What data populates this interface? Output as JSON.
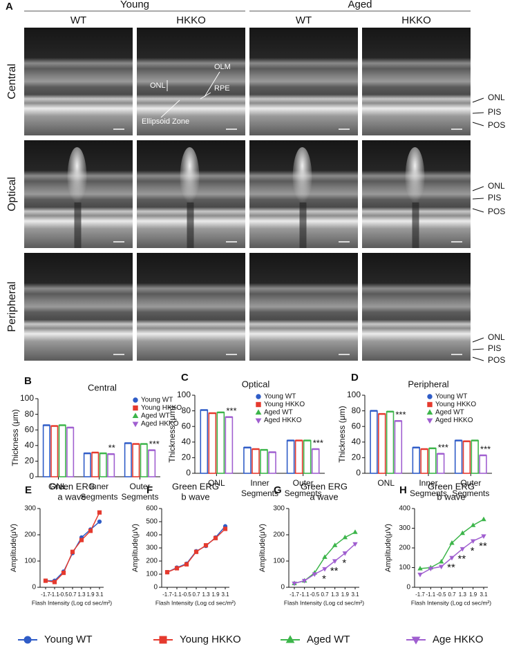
{
  "figure": {
    "panel": "A",
    "groups": [
      "Young",
      "Aged"
    ],
    "columns": [
      "WT",
      "HKKO",
      "WT",
      "HKKO"
    ],
    "rows": [
      "Central",
      "Optical",
      "Peripheral"
    ],
    "layers": [
      "ONL",
      "PIS",
      "POS"
    ],
    "annotations": [
      "OLM",
      "ONL",
      "RPE",
      "Ellipsoid Zone"
    ]
  },
  "chart_data": [
    {
      "type": "bar",
      "panel": "B",
      "title": "Central",
      "ylabel": "Thickness (μm)",
      "categories": [
        "ONL",
        "Inner Segments",
        "Outer Segments"
      ],
      "series": [
        {
          "name": "Young WT",
          "color": "#2f5cc7",
          "marker": "circle",
          "values": [
            66,
            30,
            43
          ]
        },
        {
          "name": "Young HKKO",
          "color": "#e53a2e",
          "marker": "square",
          "values": [
            65,
            31,
            42
          ]
        },
        {
          "name": "Aged WT",
          "color": "#3cb54a",
          "marker": "triangle-up",
          "values": [
            66,
            30,
            42
          ]
        },
        {
          "name": "Aged HKKO",
          "color": "#a05fd0",
          "marker": "triangle-down",
          "values": [
            63,
            29,
            34
          ]
        }
      ],
      "ylim": [
        0,
        100
      ],
      "yticks": [
        0,
        20,
        40,
        60,
        80,
        100
      ],
      "annotations": [
        {
          "text": "**",
          "category": "Inner Segments",
          "series": "Aged HKKO"
        },
        {
          "text": "***",
          "category": "Outer Segments",
          "series": "Aged HKKO"
        }
      ]
    },
    {
      "type": "bar",
      "panel": "C",
      "title": "Optical",
      "ylabel": "Thickness (μm)",
      "categories": [
        "ONL",
        "Inner Segments",
        "Outer Segments"
      ],
      "series": [
        {
          "name": "Young WT",
          "color": "#2f5cc7",
          "marker": "circle",
          "values": [
            81,
            33,
            42
          ]
        },
        {
          "name": "Young HKKO",
          "color": "#e53a2e",
          "marker": "square",
          "values": [
            77,
            31,
            42
          ]
        },
        {
          "name": "Aged WT",
          "color": "#3cb54a",
          "marker": "triangle-up",
          "values": [
            78,
            30,
            42
          ]
        },
        {
          "name": "Aged HKKO",
          "color": "#a05fd0",
          "marker": "triangle-down",
          "values": [
            72,
            27,
            31
          ]
        }
      ],
      "ylim": [
        0,
        100
      ],
      "yticks": [
        0,
        20,
        40,
        60,
        80,
        100
      ],
      "annotations": [
        {
          "text": "***",
          "category": "ONL",
          "series": "Aged HKKO"
        },
        {
          "text": "***",
          "category": "Outer Segments",
          "series": "Aged HKKO"
        }
      ]
    },
    {
      "type": "bar",
      "panel": "D",
      "title": "Peripheral",
      "ylabel": "Thickness (μm)",
      "categories": [
        "ONL",
        "Inner Segments",
        "Outer Segments"
      ],
      "series": [
        {
          "name": "Young WT",
          "color": "#2f5cc7",
          "marker": "circle",
          "values": [
            80,
            33,
            42
          ]
        },
        {
          "name": "Young HKKO",
          "color": "#e53a2e",
          "marker": "square",
          "values": [
            76,
            31,
            41
          ]
        },
        {
          "name": "Aged WT",
          "color": "#3cb54a",
          "marker": "triangle-up",
          "values": [
            79,
            32,
            42
          ]
        },
        {
          "name": "Aged HKKO",
          "color": "#a05fd0",
          "marker": "triangle-down",
          "values": [
            67,
            25,
            23
          ]
        }
      ],
      "ylim": [
        0,
        100
      ],
      "yticks": [
        0,
        20,
        40,
        60,
        80,
        100
      ],
      "annotations": [
        {
          "text": "***",
          "category": "ONL",
          "series": "Aged HKKO"
        },
        {
          "text": "***",
          "category": "Inner Segments",
          "series": "Aged HKKO"
        },
        {
          "text": "***",
          "category": "Outer Segments",
          "series": "Aged HKKO"
        }
      ]
    },
    {
      "type": "line",
      "panel": "E",
      "title": "Green ERG",
      "subtitle": "a wave",
      "xlabel": "Flash Intensity (Log cd sec/m²)",
      "ylabel": "Amplitude(μV)",
      "categories": [
        "-1.7",
        "-1.1",
        "-0.5",
        "0.7",
        "1.3",
        "1.9",
        "3.1"
      ],
      "series": [
        {
          "name": "Young WT",
          "color": "#2f5cc7",
          "marker": "circle",
          "values": [
            25,
            25,
            60,
            130,
            190,
            220,
            250
          ]
        },
        {
          "name": "Young HKKO",
          "color": "#e53a2e",
          "marker": "square",
          "values": [
            25,
            20,
            55,
            135,
            180,
            215,
            285
          ]
        }
      ],
      "ylim": [
        0,
        300
      ],
      "yticks": [
        0,
        100,
        200,
        300
      ]
    },
    {
      "type": "line",
      "panel": "F",
      "title": "Green ERG",
      "subtitle": "b wave",
      "xlabel": "Flash Intensity (Log cd sec/m²)",
      "ylabel": "Amplitude(μV)",
      "categories": [
        "-1.7",
        "-1.1",
        "-0.5",
        "0.7",
        "1.3",
        "1.9",
        "3.1"
      ],
      "series": [
        {
          "name": "Young WT",
          "color": "#2f5cc7",
          "marker": "circle",
          "values": [
            115,
            150,
            180,
            275,
            315,
            380,
            465
          ]
        },
        {
          "name": "Young HKKO",
          "color": "#e53a2e",
          "marker": "square",
          "values": [
            115,
            145,
            175,
            270,
            320,
            375,
            445
          ]
        }
      ],
      "ylim": [
        0,
        600
      ],
      "yticks": [
        0,
        100,
        200,
        300,
        400,
        500,
        600
      ]
    },
    {
      "type": "line",
      "panel": "G",
      "title": "Green ERG",
      "subtitle": "a wave",
      "xlabel": "Flash Intensity (Log cd sec/m²)",
      "ylabel": "Amplitude(μV)",
      "categories": [
        "-1.7",
        "-1.1",
        "-0.5",
        "0.7",
        "1.3",
        "1.9",
        "3.1"
      ],
      "series": [
        {
          "name": "Aged WT",
          "color": "#3cb54a",
          "marker": "triangle-up",
          "values": [
            15,
            25,
            55,
            115,
            160,
            190,
            210
          ]
        },
        {
          "name": "Age HKKO",
          "color": "#a05fd0",
          "marker": "triangle-down",
          "values": [
            15,
            25,
            50,
            70,
            100,
            130,
            165
          ]
        }
      ],
      "ylim": [
        0,
        300
      ],
      "yticks": [
        0,
        100,
        200,
        300
      ],
      "annotations": [
        {
          "text": "*",
          "category": "0.7",
          "series": "Age HKKO"
        },
        {
          "text": "**",
          "category": "1.3",
          "series": "Age HKKO"
        },
        {
          "text": "*",
          "category": "1.9",
          "series": "Age HKKO"
        }
      ]
    },
    {
      "type": "line",
      "panel": "H",
      "title": "Green ERG",
      "subtitle": "b wave",
      "xlabel": "Flash Intensity (Log cd sec/m²)",
      "ylabel": "Amplitude(μV)",
      "categories": [
        "-1.7",
        "-1.1",
        "-0.5",
        "0.7",
        "1.3",
        "1.9",
        "3.1"
      ],
      "series": [
        {
          "name": "Aged WT",
          "color": "#3cb54a",
          "marker": "triangle-up",
          "values": [
            95,
            100,
            130,
            225,
            275,
            315,
            345
          ]
        },
        {
          "name": "Age HKKO",
          "color": "#a05fd0",
          "marker": "triangle-down",
          "values": [
            65,
            95,
            105,
            150,
            195,
            235,
            260
          ]
        }
      ],
      "ylim": [
        0,
        400
      ],
      "yticks": [
        0,
        100,
        200,
        300,
        400
      ],
      "annotations": [
        {
          "text": "**",
          "category": "0.7",
          "series": "Age HKKO"
        },
        {
          "text": "**",
          "category": "1.3",
          "series": "Age HKKO"
        },
        {
          "text": "*",
          "category": "1.9",
          "series": "Age HKKO"
        },
        {
          "text": "**",
          "category": "3.1",
          "series": "Age HKKO"
        }
      ]
    }
  ]
}
